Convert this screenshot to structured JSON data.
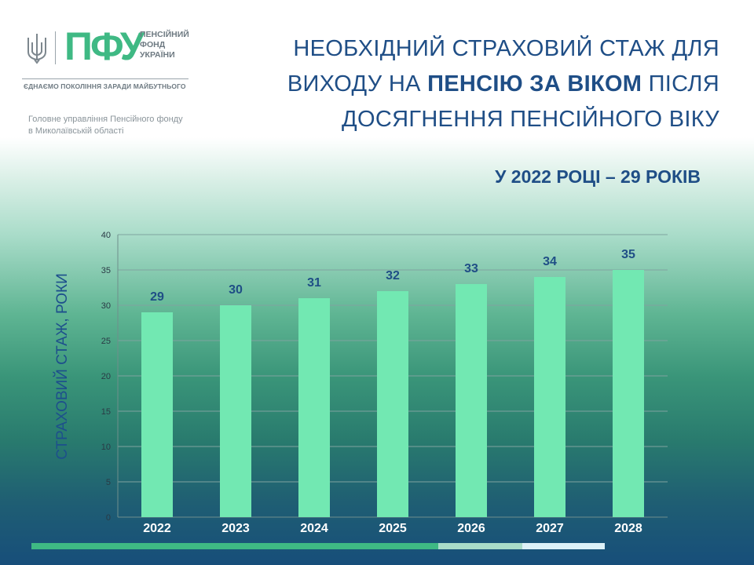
{
  "logo": {
    "mark": "ПФУ",
    "name_lines": [
      "ПЕНСІЙНИЙ",
      "ФОНД",
      "УКРАЇНИ"
    ],
    "slogan": "ЄДНАЄМО ПОКОЛІННЯ ЗАРАДИ МАЙБУТНЬОГО",
    "brand_color": "#3fb984"
  },
  "office": {
    "line1": "Головне управління Пенсійного фонду",
    "line2": "в Миколаївській області"
  },
  "title": {
    "line1": "НЕОБХІДНИЙ СТРАХОВИЙ СТАЖ ДЛЯ",
    "line2_pre": "ВИХОДУ НА ",
    "line2_bold": "ПЕНСІЮ ЗА ВІКОМ",
    "line2_post": " ПІСЛЯ",
    "line3": "ДОСЯГНЕННЯ ПЕНСІЙНОГО ВІКУ"
  },
  "subtitle": "У 2022 РОЦІ – 29 РОКІВ",
  "chart_data": {
    "type": "bar",
    "categories": [
      "2022",
      "2023",
      "2024",
      "2025",
      "2026",
      "2027",
      "2028"
    ],
    "values": [
      29,
      30,
      31,
      32,
      33,
      34,
      35
    ],
    "ylabel": "СТРАХОВИЙ СТАЖ, РОКИ",
    "xlabel": "",
    "ylim": [
      0,
      40
    ],
    "yticks": [
      0,
      5,
      10,
      15,
      20,
      25,
      30,
      35,
      40
    ],
    "grid": true,
    "data_labels": true,
    "bar_color": "#72e8b2",
    "label_color": "#1f4e86"
  },
  "colors": {
    "title": "#1f4e86",
    "bottom_bar": [
      "#3fb984",
      "#a9dcc9",
      "#ddf1f8"
    ]
  }
}
